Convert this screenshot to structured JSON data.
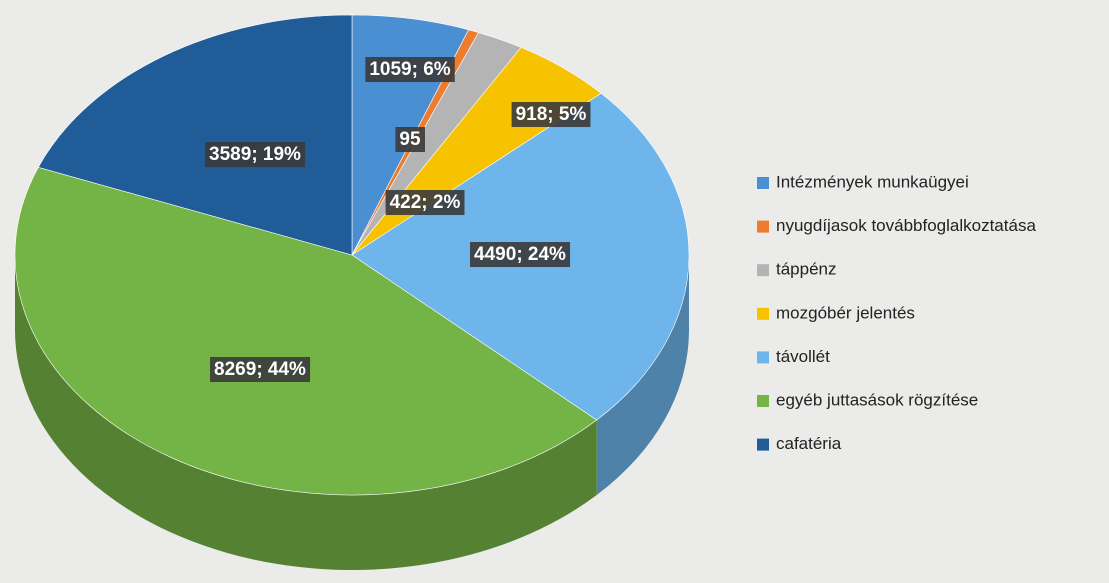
{
  "chart_data": {
    "type": "pie",
    "categories": [
      "Intézmények munkaügyei",
      "nyugdíjasok továbbfoglalkoztatása",
      "táppénz",
      "mozgóbér jelentés",
      "távollét",
      "egyéb juttasások rögzítése",
      "cafatéria"
    ],
    "values": [
      1059,
      95,
      422,
      918,
      4490,
      8269,
      3589
    ],
    "value_labels": [
      "1059; 6%",
      "95",
      "422; 2%",
      "918; 5%",
      "4490; 24%",
      "8269; 44%",
      "3589; 19%"
    ],
    "colors": [
      "#4a8fd2",
      "#ec7c30",
      "#b4b4b4",
      "#f7c200",
      "#6db5ea",
      "#74b446",
      "#1f5c98"
    ],
    "legend": "right"
  }
}
